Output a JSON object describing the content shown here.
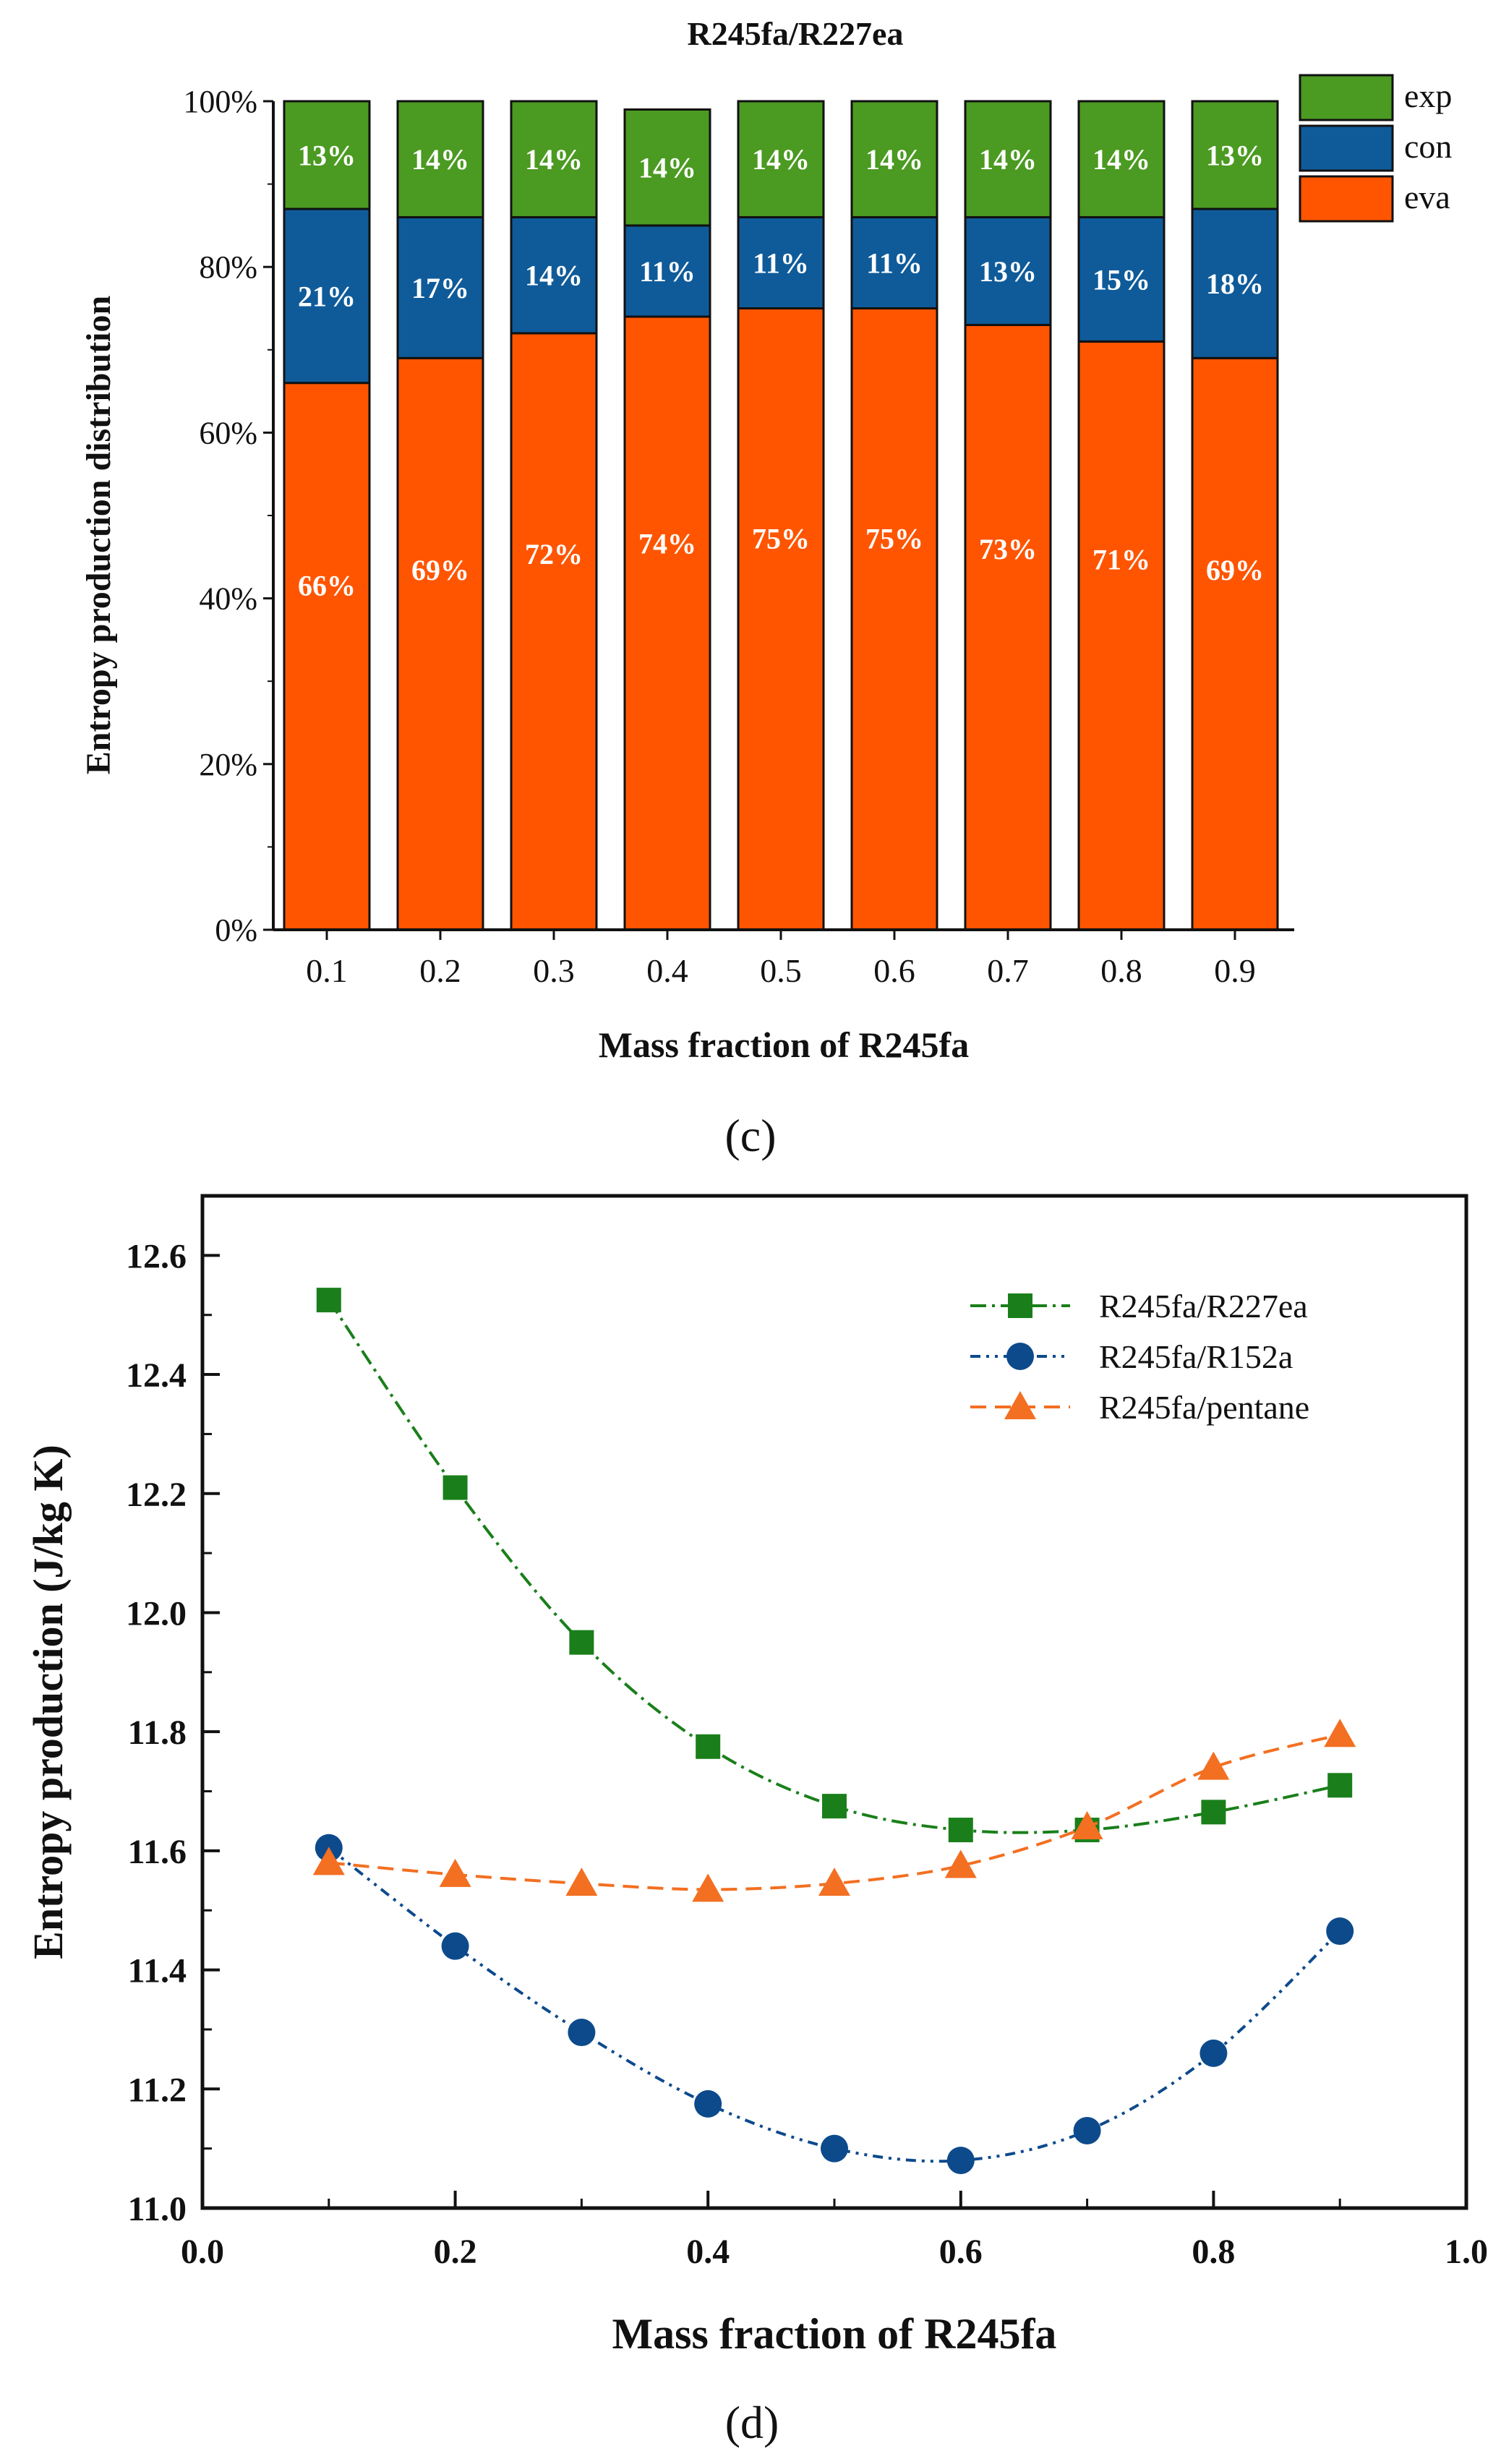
{
  "chart_data": [
    {
      "panel": "(c)",
      "type": "bar",
      "stacked": true,
      "title": "R245fa/R227ea",
      "xlabel": "Mass fraction of R245fa",
      "ylabel": "Entropy production distribution",
      "categories": [
        "0.1",
        "0.2",
        "0.3",
        "0.4",
        "0.5",
        "0.6",
        "0.7",
        "0.8",
        "0.9"
      ],
      "ylim": [
        0,
        100
      ],
      "yticks": [
        "0%",
        "20%",
        "40%",
        "60%",
        "80%",
        "100%"
      ],
      "legend_position": "top-right",
      "series": [
        {
          "name": "eva",
          "color": "#ff5500",
          "values": [
            66,
            69,
            72,
            74,
            75,
            75,
            73,
            71,
            69
          ],
          "labels": [
            "66%",
            "69%",
            "72%",
            "74%",
            "75%",
            "75%",
            "73%",
            "71%",
            "69%"
          ]
        },
        {
          "name": "con",
          "color": "#0f5b9a",
          "values": [
            21,
            17,
            14,
            11,
            11,
            11,
            13,
            15,
            18
          ],
          "labels": [
            "21%",
            "17%",
            "14%",
            "11%",
            "11%",
            "11%",
            "13%",
            "15%",
            "18%"
          ]
        },
        {
          "name": "exp",
          "color": "#4b9a21",
          "values": [
            13,
            14,
            14,
            14,
            14,
            14,
            14,
            14,
            13
          ],
          "labels": [
            "13%",
            "14%",
            "14%",
            "14%",
            "14%",
            "14%",
            "14%",
            "14%",
            "13%"
          ]
        }
      ]
    },
    {
      "panel": "(d)",
      "type": "line",
      "xlabel": "Mass fraction of R245fa",
      "ylabel": "Entropy production (J/kg K)",
      "xlim": [
        0.0,
        1.0
      ],
      "ylim": [
        11.0,
        12.7
      ],
      "xticks": [
        "0.0",
        "0.2",
        "0.4",
        "0.6",
        "0.8",
        "1.0"
      ],
      "yticks": [
        "11.0",
        "11.2",
        "11.4",
        "11.6",
        "11.8",
        "12.0",
        "12.2",
        "12.4",
        "12.6"
      ],
      "legend_position": "top-right",
      "x": [
        0.1,
        0.2,
        0.3,
        0.4,
        0.5,
        0.6,
        0.7,
        0.8,
        0.9
      ],
      "series": [
        {
          "name": "R245fa/R227ea",
          "marker": "square",
          "color": "#1a7f1a",
          "values": [
            12.525,
            12.21,
            11.95,
            11.775,
            11.675,
            11.635,
            11.635,
            11.665,
            11.71
          ]
        },
        {
          "name": "R245fa/R152a",
          "marker": "circle",
          "color": "#0d4a8c",
          "values": [
            11.605,
            11.44,
            11.295,
            11.175,
            11.1,
            11.08,
            11.13,
            11.26,
            11.465
          ]
        },
        {
          "name": "R245fa/pentane",
          "marker": "triangle",
          "color": "#f36f21",
          "values": [
            11.58,
            11.56,
            11.545,
            11.535,
            11.545,
            11.575,
            11.64,
            11.74,
            11.795
          ]
        }
      ]
    }
  ]
}
